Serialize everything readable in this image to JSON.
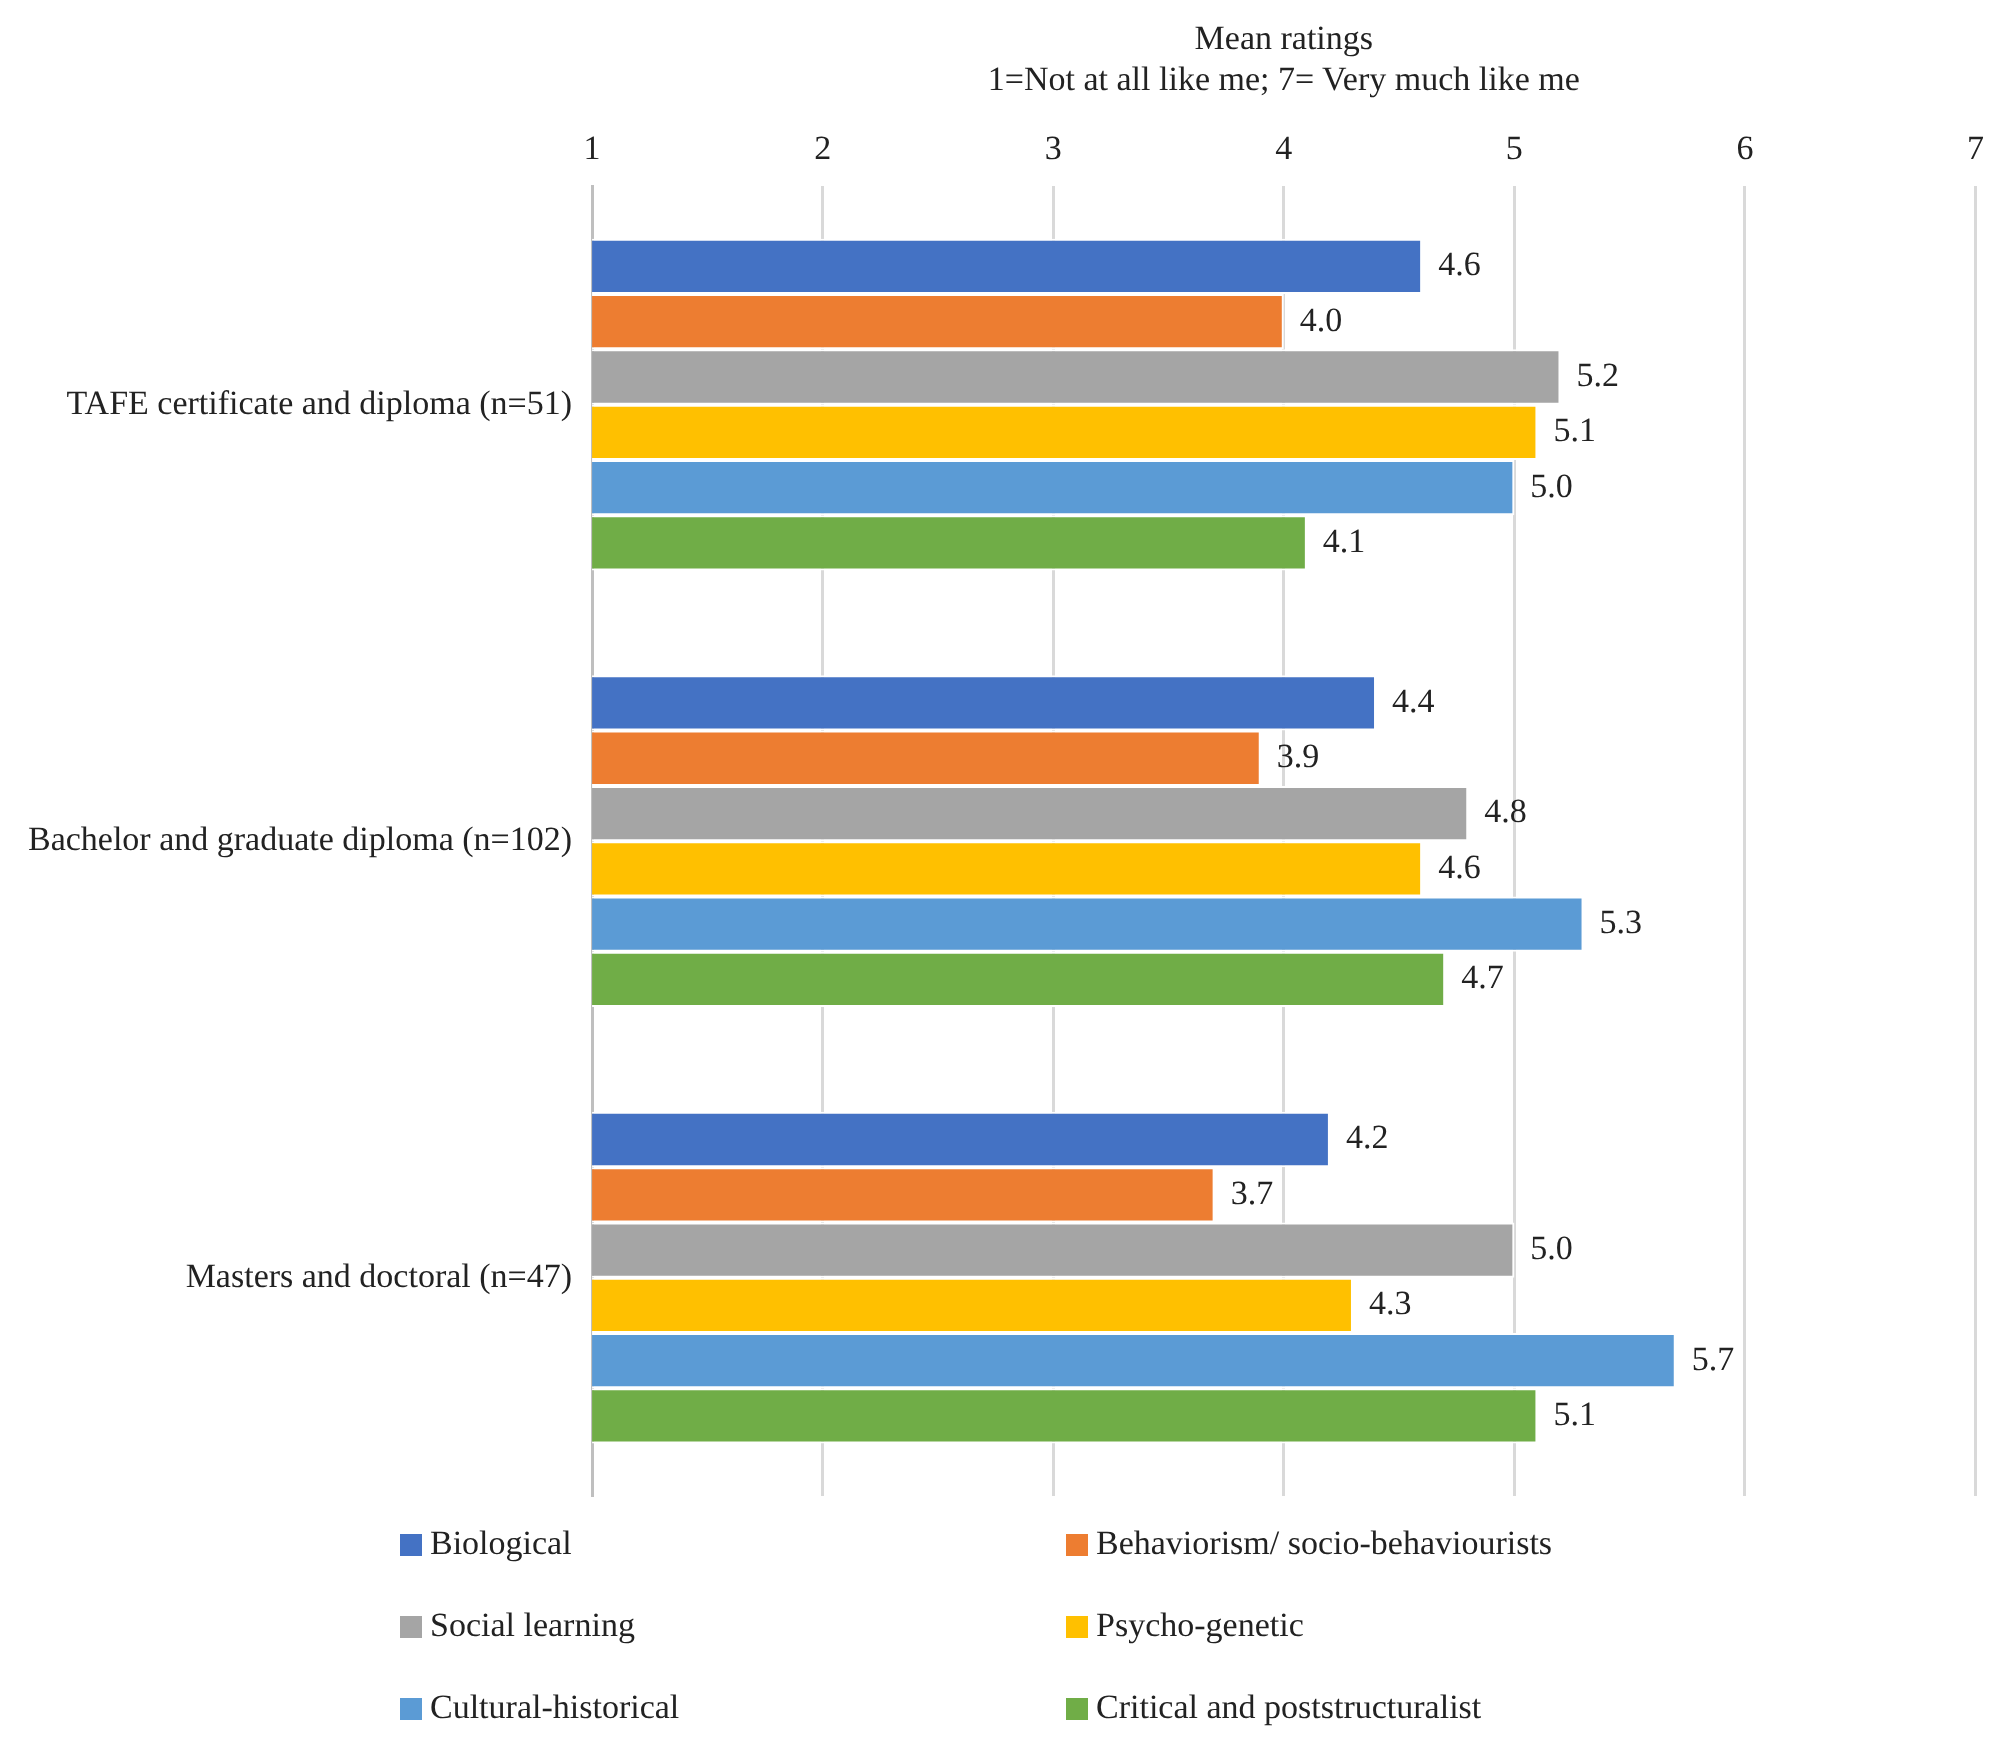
{
  "chart_data": {
    "type": "bar",
    "orientation": "horizontal",
    "xlabel": "Mean ratings\n1=Not at all like me; 7= Very much like me",
    "categories": [
      "TAFE certificate and diploma (n=51)",
      "Bachelor and graduate diploma (n=102)",
      "Masters and doctoral (n=47)"
    ],
    "series": [
      {
        "name": "Biological",
        "color": "#4472c4",
        "values": [
          4.6,
          4.4,
          4.2
        ],
        "value_labels": [
          "4.6",
          "4.4",
          "4.2"
        ]
      },
      {
        "name": "Behaviorism/ socio-behaviourists",
        "color": "#ed7d31",
        "values": [
          4.0,
          3.9,
          3.7
        ],
        "value_labels": [
          "4.0",
          "3.9",
          "3.7"
        ]
      },
      {
        "name": "Social learning",
        "color": "#a5a5a5",
        "values": [
          5.2,
          4.8,
          5.0
        ],
        "value_labels": [
          "5.2",
          "4.8",
          "5.0"
        ]
      },
      {
        "name": "Psycho-genetic",
        "color": "#ffc000",
        "values": [
          5.1,
          4.6,
          4.3
        ],
        "value_labels": [
          "5.1",
          "4.6",
          "4.3"
        ]
      },
      {
        "name": "Cultural-historical",
        "color": "#5b9bd5",
        "values": [
          5.0,
          5.3,
          5.7
        ],
        "value_labels": [
          "5.0",
          "5.3",
          "5.7"
        ]
      },
      {
        "name": "Critical and poststructuralist",
        "color": "#70ad47",
        "values": [
          4.1,
          4.7,
          5.1
        ],
        "value_labels": [
          "4.1",
          "4.7",
          "5.1"
        ]
      }
    ],
    "xlim": [
      1,
      7
    ],
    "xticks": [
      1,
      2,
      3,
      4,
      5,
      6,
      7
    ],
    "grid": "x",
    "legend": "bottom"
  }
}
